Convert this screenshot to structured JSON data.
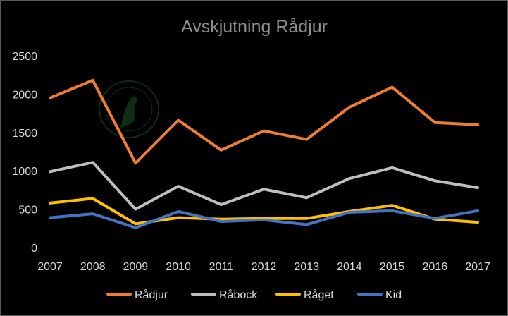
{
  "chart_data": {
    "type": "line",
    "title": "Avskjutning Rådjur",
    "xlabel": "",
    "ylabel": "",
    "x": [
      "2007",
      "2008",
      "2009",
      "2010",
      "2011",
      "2012",
      "2013",
      "2014",
      "2015",
      "2016",
      "2017"
    ],
    "ylim": [
      0,
      2500
    ],
    "yticks": [
      "0",
      "500",
      "1000",
      "1500",
      "2000",
      "2500"
    ],
    "grid": false,
    "legend_position": "bottom",
    "series": [
      {
        "name": "Rådjur",
        "color": "#ed7d31",
        "values": [
          1950,
          2180,
          1100,
          1660,
          1270,
          1520,
          1410,
          1830,
          2090,
          1630,
          1600
        ]
      },
      {
        "name": "Råbock",
        "color": "#bfbfbf",
        "values": [
          990,
          1110,
          500,
          800,
          560,
          760,
          650,
          900,
          1040,
          870,
          780
        ]
      },
      {
        "name": "Råget",
        "color": "#ffc000",
        "values": [
          580,
          640,
          310,
          390,
          370,
          380,
          380,
          470,
          550,
          370,
          330
        ]
      },
      {
        "name": "Kid",
        "color": "#4472c4",
        "values": [
          390,
          440,
          260,
          470,
          340,
          360,
          300,
          460,
          480,
          380,
          480
        ]
      }
    ]
  }
}
